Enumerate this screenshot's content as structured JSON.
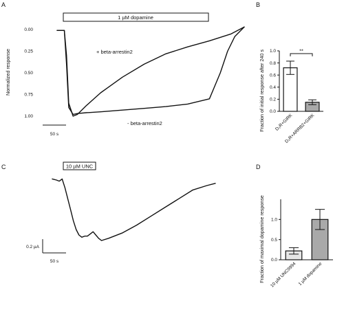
{
  "chart_data": [
    {
      "panel": "A",
      "type": "line",
      "bar_label": "1 µM dopamine",
      "ylabel": "Normalized response",
      "y_ticks": [
        "0.00",
        "0.25",
        "0.50",
        "0.75",
        "1.00"
      ],
      "scale_bar_label": "50 s",
      "series": [
        {
          "name": "+ beta-arrestin2",
          "x": [
            0,
            10,
            13,
            16,
            22,
            28,
            40,
            60,
            90,
            120,
            150,
            180,
            210,
            240,
            258
          ],
          "y": [
            0.01,
            0.01,
            0.3,
            0.85,
            1.0,
            0.98,
            0.88,
            0.73,
            0.55,
            0.4,
            0.28,
            0.2,
            0.13,
            0.05,
            -0.03
          ]
        },
        {
          "name": "- beta-arrestin2",
          "x": [
            0,
            10,
            13,
            16,
            22,
            28,
            40,
            60,
            90,
            120,
            150,
            180,
            210,
            225,
            235,
            245,
            258
          ],
          "y": [
            0.01,
            0.01,
            0.4,
            0.9,
            0.98,
            0.97,
            0.96,
            0.95,
            0.93,
            0.91,
            0.89,
            0.86,
            0.8,
            0.5,
            0.25,
            0.08,
            -0.03
          ]
        }
      ]
    },
    {
      "panel": "B",
      "type": "bar",
      "ylabel": "Fraction of initial response after 240 s",
      "categories": [
        "D₂R+GIRK",
        "D₂R+ARRB2+GIRK"
      ],
      "values": [
        0.72,
        0.15
      ],
      "errors": [
        0.11,
        0.04
      ],
      "ylim": [
        0,
        1.0
      ],
      "y_ticks": [
        "0.0",
        "0.2",
        "0.4",
        "0.6",
        "0.8",
        "1.0"
      ],
      "significance": "**",
      "colors": [
        "#ffffff",
        "#a9a9a9"
      ]
    },
    {
      "panel": "C",
      "type": "line",
      "bar_label": "10 µM UNC",
      "scale_y_label": "0.2 µA",
      "scale_x_label": "50 s",
      "series": [
        {
          "name": "",
          "x": [
            0,
            6,
            10,
            14,
            18,
            22,
            26,
            30,
            34,
            38,
            42,
            46,
            50,
            54,
            58,
            62,
            66,
            70,
            80,
            100,
            120,
            140,
            160,
            180,
            200,
            220,
            232
          ],
          "y": [
            0.06,
            0.05,
            0.04,
            0.06,
            -0.02,
            -0.12,
            -0.22,
            -0.32,
            -0.4,
            -0.45,
            -0.47,
            -0.46,
            -0.46,
            -0.44,
            -0.42,
            -0.45,
            -0.48,
            -0.5,
            -0.48,
            -0.43,
            -0.36,
            -0.28,
            -0.2,
            -0.12,
            -0.04,
            0.0,
            0.02
          ]
        }
      ]
    },
    {
      "panel": "D",
      "type": "bar",
      "ylabel": "Fraction of maximal dopamine response",
      "categories": [
        "10 µM UNC9994",
        "1 µM dopamine"
      ],
      "values": [
        0.22,
        1.0
      ],
      "errors": [
        0.08,
        0.25
      ],
      "ylim": [
        0,
        1.5
      ],
      "y_ticks": [
        "0.0",
        "0.5",
        "1.0"
      ],
      "colors": [
        "#e6e6e6",
        "#a9a9a9"
      ]
    }
  ],
  "panels": {
    "a": "A",
    "b": "B",
    "c": "C",
    "d": "D"
  }
}
